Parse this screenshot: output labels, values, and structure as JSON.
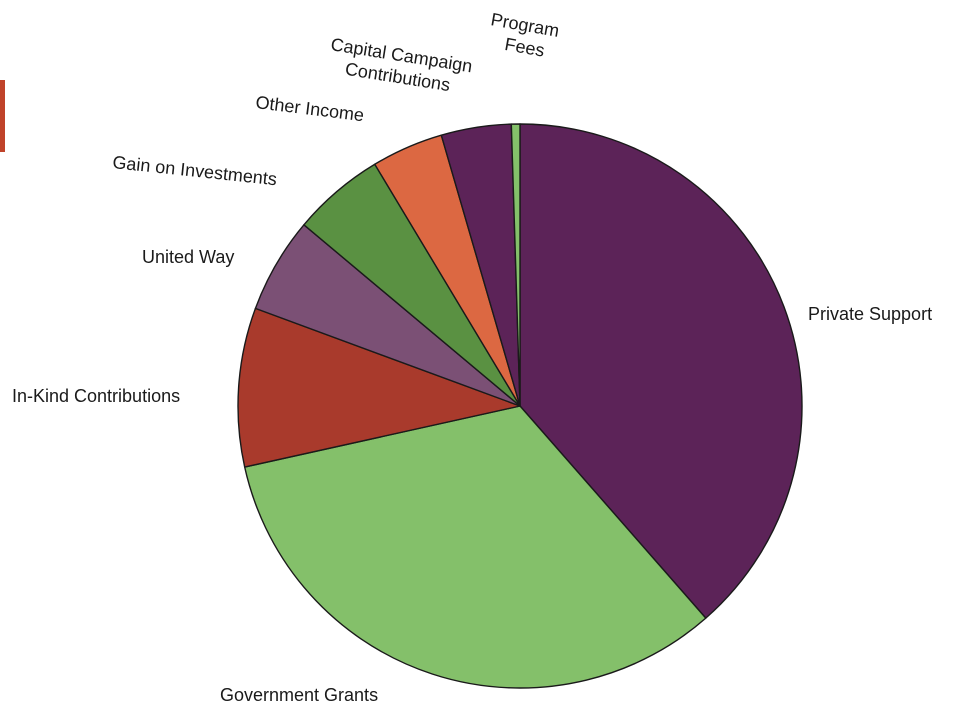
{
  "accent_color": "#c0432a",
  "chart_data": {
    "type": "pie",
    "start_angle_deg": 90,
    "direction": "clockwise",
    "categories": [
      "Private Support",
      "Government Grants",
      "In-Kind Contributions",
      "United Way",
      "Gain on Investments",
      "Other Income",
      "Capital Campaign Contributions",
      "Program Fees"
    ],
    "values": [
      39.4,
      33.7,
      9.3,
      5.6,
      5.4,
      4.2,
      4.1,
      0.5
    ],
    "unit": "percent",
    "colors": [
      "#5c2358",
      "#84c06a",
      "#a93a2c",
      "#7b5075",
      "#5a9142",
      "#dc6842",
      "#5c2358",
      "#84c06a"
    ],
    "labels": [
      {
        "lines": [
          "Private Support"
        ]
      },
      {
        "lines": [
          "Government Grants"
        ]
      },
      {
        "lines": [
          "In-Kind Contributions"
        ]
      },
      {
        "lines": [
          "United Way"
        ]
      },
      {
        "lines": [
          "Gain on Investments"
        ]
      },
      {
        "lines": [
          "Other Income"
        ]
      },
      {
        "lines": [
          "Capital Campaign",
          "Contributions"
        ]
      },
      {
        "lines": [
          "Program",
          "Fees"
        ]
      }
    ]
  }
}
